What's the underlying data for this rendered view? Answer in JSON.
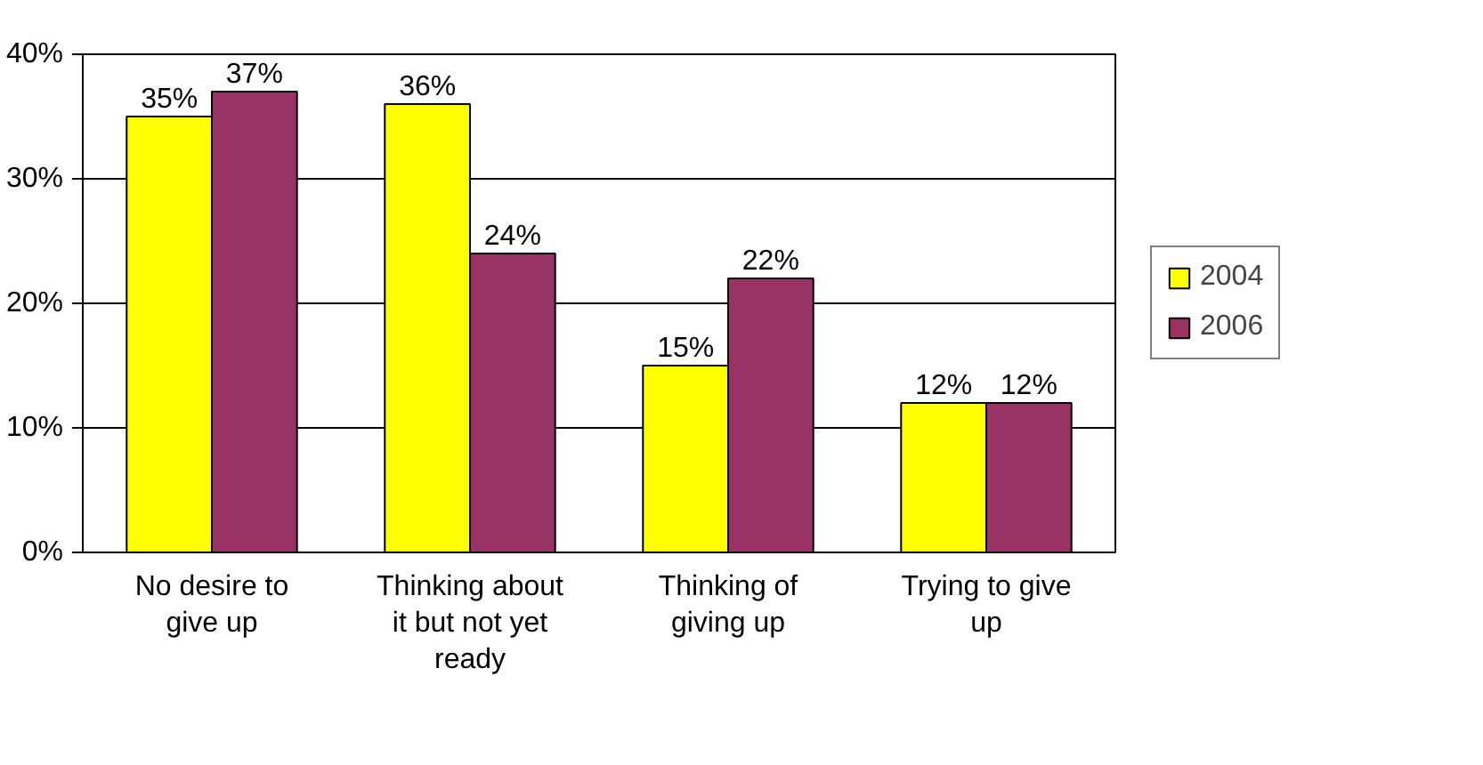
{
  "chart_data": {
    "type": "bar",
    "categories": [
      "No desire to give up",
      "Thinking about it but not yet ready",
      "Thinking of giving up",
      "Trying to give up"
    ],
    "series": [
      {
        "name": "2004",
        "color": "#ffff00",
        "values": [
          35,
          36,
          15,
          12
        ],
        "value_labels": [
          "35%",
          "36%",
          "15%",
          "12%"
        ]
      },
      {
        "name": "2006",
        "color": "#993366",
        "values": [
          37,
          24,
          22,
          12
        ],
        "value_labels": [
          "37%",
          "24%",
          "22%",
          "12%"
        ]
      }
    ],
    "ylim": [
      0,
      40
    ],
    "yticks": [
      {
        "value": 0,
        "label": "0%"
      },
      {
        "value": 10,
        "label": "10%"
      },
      {
        "value": 20,
        "label": "20%"
      },
      {
        "value": 30,
        "label": "30%"
      },
      {
        "value": 40,
        "label": "40%"
      }
    ],
    "grid": "y",
    "legend": "right"
  }
}
